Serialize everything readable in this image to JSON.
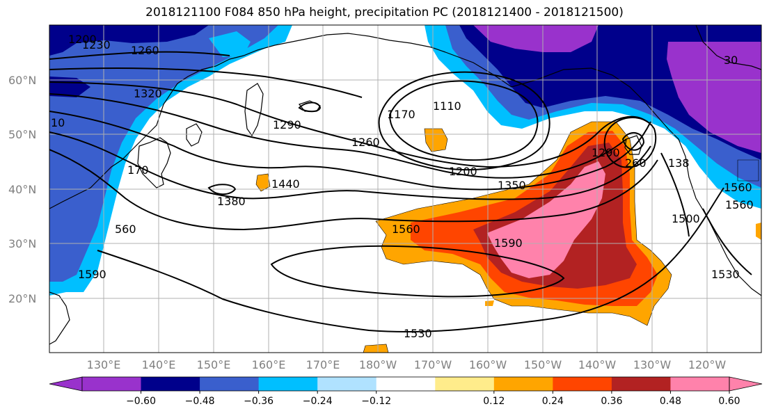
{
  "title": "2018121100 F084 850 hPa height, precipitation PC (2018121400 - 2018121500)",
  "lat_ticks": [
    "60°N",
    "50°N",
    "40°N",
    "30°N",
    "20°N"
  ],
  "lon_ticks": [
    "130°E",
    "140°E",
    "150°E",
    "160°E",
    "170°E",
    "180°W",
    "170°W",
    "160°W",
    "150°W",
    "140°W",
    "130°W",
    "120°W"
  ],
  "contour_labels": [
    "1200",
    "1230",
    "1260",
    "1320",
    "10",
    "1290",
    "1170",
    "1110",
    "1260",
    "1200",
    "1350",
    "1290",
    "260",
    "138",
    "1560",
    "170",
    "1380",
    "1440",
    "1560",
    "560",
    "1590",
    "1590",
    "1500",
    "1530",
    "1530",
    "1560",
    "30"
  ],
  "colorbar": {
    "colors": [
      "#9932CC",
      "#00008B",
      "#3A5FCD",
      "#00BFFF",
      "#B0E2FF",
      "#FFFFFF",
      "#FFEC8B",
      "#FFA500",
      "#FF4500",
      "#B22222",
      "#FF82AB"
    ],
    "tick_labels": [
      "−0.60",
      "−0.48",
      "−0.36",
      "−0.24",
      "−0.12",
      "0.12",
      "0.24",
      "0.36",
      "0.48",
      "0.60"
    ]
  }
}
